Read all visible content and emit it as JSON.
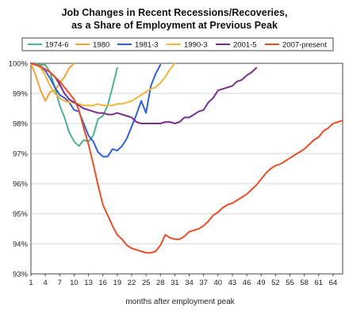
{
  "chart_data": {
    "type": "line",
    "title_line1": "Job Changes in Recent Recessions/Recoveries,",
    "title_line2": "as a Share of Employment at Previous Peak",
    "xlabel": "months after employment peak",
    "ylabel": "",
    "xlim": [
      1,
      66
    ],
    "ylim": [
      93,
      100
    ],
    "x_ticks": [
      1,
      4,
      7,
      10,
      13,
      16,
      19,
      22,
      25,
      28,
      31,
      34,
      37,
      40,
      43,
      46,
      49,
      52,
      55,
      58,
      61,
      64
    ],
    "y_ticks": [
      93,
      94,
      95,
      96,
      97,
      98,
      99,
      100
    ],
    "y_tick_labels": [
      "93%",
      "94%",
      "95%",
      "96%",
      "97%",
      "98%",
      "99%",
      "100%"
    ],
    "grid": "horizontal",
    "legend_position": "top",
    "series": [
      {
        "name": "1974-6",
        "color": "#4db38a",
        "x": [
          1,
          2,
          3,
          4,
          5,
          6,
          7,
          8,
          9,
          10,
          11,
          12,
          13,
          14,
          15,
          16,
          17,
          18,
          19
        ],
        "y": [
          100,
          100,
          99.95,
          99.95,
          99.7,
          99.2,
          98.6,
          98.2,
          97.7,
          97.4,
          97.25,
          97.45,
          97.4,
          97.6,
          98.15,
          98.25,
          98.6,
          99.2,
          99.85
        ]
      },
      {
        "name": "1980",
        "color": "#f5a133",
        "x": [
          1,
          2,
          3,
          4,
          5,
          6,
          7,
          8,
          9,
          10
        ],
        "y": [
          100,
          99.6,
          99.1,
          98.75,
          99.05,
          99.1,
          99.35,
          99.55,
          99.85,
          100
        ]
      },
      {
        "name": "1981-3",
        "color": "#3060d6",
        "x": [
          1,
          2,
          3,
          4,
          5,
          6,
          7,
          8,
          9,
          10,
          11,
          12,
          13,
          14,
          15,
          16,
          17,
          18,
          19,
          20,
          21,
          22,
          23,
          24,
          25,
          26,
          27,
          28
        ],
        "y": [
          100,
          99.95,
          99.9,
          99.75,
          99.5,
          99.2,
          98.95,
          98.85,
          98.7,
          98.45,
          98.4,
          98.0,
          97.6,
          97.4,
          97.05,
          96.9,
          96.9,
          97.15,
          97.1,
          97.25,
          97.5,
          97.9,
          98.3,
          98.75,
          98.35,
          99.25,
          99.65,
          99.95
        ]
      },
      {
        "name": "1990-3",
        "color": "#f0b63a",
        "x": [
          1,
          2,
          3,
          4,
          5,
          6,
          7,
          8,
          9,
          10,
          11,
          12,
          13,
          14,
          15,
          16,
          17,
          18,
          19,
          20,
          21,
          22,
          23,
          24,
          25,
          26,
          27,
          28,
          29,
          30,
          31
        ],
        "y": [
          100,
          99.95,
          99.85,
          99.6,
          99.25,
          99.0,
          98.85,
          98.75,
          98.7,
          98.7,
          98.65,
          98.6,
          98.6,
          98.6,
          98.65,
          98.6,
          98.6,
          98.6,
          98.65,
          98.65,
          98.7,
          98.75,
          98.85,
          98.95,
          99.05,
          99.15,
          99.2,
          99.35,
          99.55,
          99.8,
          100
        ]
      },
      {
        "name": "2001-5",
        "color": "#7a2e8c",
        "x": [
          1,
          2,
          3,
          4,
          5,
          6,
          7,
          8,
          9,
          10,
          11,
          12,
          13,
          14,
          15,
          16,
          17,
          18,
          19,
          20,
          21,
          22,
          23,
          24,
          25,
          26,
          27,
          28,
          29,
          30,
          31,
          32,
          33,
          34,
          35,
          36,
          37,
          38,
          39,
          40,
          41,
          42,
          43,
          44,
          45,
          46,
          47,
          48
        ],
        "y": [
          100,
          99.95,
          99.9,
          99.8,
          99.7,
          99.55,
          99.3,
          99.0,
          98.8,
          98.7,
          98.6,
          98.5,
          98.45,
          98.4,
          98.35,
          98.35,
          98.3,
          98.3,
          98.35,
          98.3,
          98.25,
          98.2,
          98.05,
          98.0,
          98.0,
          98.0,
          98.0,
          98.0,
          98.05,
          98.05,
          98.0,
          98.05,
          98.2,
          98.2,
          98.3,
          98.4,
          98.45,
          98.7,
          98.85,
          99.1,
          99.15,
          99.2,
          99.25,
          99.4,
          99.45,
          99.6,
          99.7,
          99.85
        ]
      },
      {
        "name": "2007-present",
        "color": "#ea4d2a",
        "x": [
          1,
          2,
          3,
          4,
          5,
          6,
          7,
          8,
          9,
          10,
          11,
          12,
          13,
          14,
          15,
          16,
          17,
          18,
          19,
          20,
          21,
          22,
          23,
          24,
          25,
          26,
          27,
          28,
          29,
          30,
          31,
          32,
          33,
          34,
          35,
          36,
          37,
          38,
          39,
          40,
          41,
          42,
          43,
          44,
          45,
          46,
          47,
          48,
          49,
          50,
          51,
          52,
          53,
          54,
          55,
          56,
          57,
          58,
          59,
          60,
          61,
          62,
          63,
          64,
          65,
          66
        ],
        "y": [
          100,
          99.95,
          99.9,
          99.8,
          99.7,
          99.55,
          99.4,
          99.2,
          99.0,
          98.8,
          98.45,
          97.85,
          97.3,
          96.65,
          95.95,
          95.3,
          94.95,
          94.6,
          94.3,
          94.15,
          93.95,
          93.85,
          93.8,
          93.75,
          93.7,
          93.7,
          93.75,
          93.95,
          94.3,
          94.2,
          94.15,
          94.15,
          94.25,
          94.4,
          94.45,
          94.5,
          94.6,
          94.75,
          94.95,
          95.05,
          95.2,
          95.3,
          95.35,
          95.45,
          95.55,
          95.65,
          95.8,
          95.95,
          96.15,
          96.35,
          96.5,
          96.6,
          96.65,
          96.75,
          96.85,
          96.95,
          97.05,
          97.15,
          97.3,
          97.45,
          97.55,
          97.75,
          97.85,
          98.0,
          98.05,
          98.1
        ]
      }
    ]
  }
}
